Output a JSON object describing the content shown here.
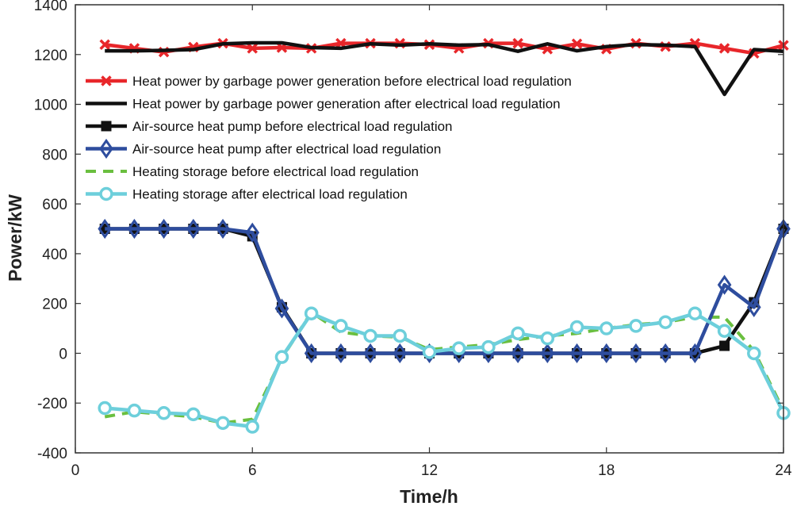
{
  "chart_data": {
    "type": "line",
    "title": "",
    "xlabel": "Time/h",
    "ylabel": "Power/kW",
    "xlim": [
      0,
      24
    ],
    "ylim": [
      -400,
      1400
    ],
    "xticks": [
      0,
      6,
      12,
      18,
      24
    ],
    "yticks": [
      -400,
      -200,
      0,
      200,
      400,
      600,
      800,
      1000,
      1200,
      1400
    ],
    "grid": false,
    "legend_position": "top-left",
    "x": [
      1,
      2,
      3,
      4,
      5,
      6,
      7,
      8,
      9,
      10,
      11,
      12,
      13,
      14,
      15,
      16,
      17,
      18,
      19,
      20,
      21,
      22,
      23,
      24
    ],
    "series": [
      {
        "name": "Heat power by garbage power generation before electrical load regulation",
        "color": "#e8262a",
        "marker": "x",
        "dash": "solid",
        "width": 4.5,
        "values": [
          1240,
          1225,
          1210,
          1230,
          1245,
          1225,
          1228,
          1225,
          1245,
          1245,
          1245,
          1240,
          1225,
          1245,
          1245,
          1222,
          1243,
          1222,
          1245,
          1232,
          1245,
          1225,
          1205,
          1237
        ]
      },
      {
        "name": "Heat power by garbage power generation after electrical load regulation",
        "color": "#111111",
        "marker": "none",
        "dash": "solid",
        "width": 4.5,
        "values": [
          1215,
          1215,
          1217,
          1220,
          1243,
          1247,
          1247,
          1228,
          1225,
          1243,
          1238,
          1243,
          1238,
          1240,
          1213,
          1243,
          1215,
          1232,
          1240,
          1238,
          1232,
          1040,
          1220,
          1213
        ]
      },
      {
        "name": "Air-source heat pump before electrical load regulation",
        "color": "#111111",
        "marker": "square",
        "dash": "solid",
        "width": 4.5,
        "values": [
          500,
          500,
          500,
          500,
          500,
          470,
          185,
          0,
          0,
          0,
          0,
          0,
          0,
          0,
          0,
          0,
          0,
          0,
          0,
          0,
          0,
          30,
          205,
          500
        ]
      },
      {
        "name": "Air-source heat pump after electrical load regulation",
        "color": "#2e4d9e",
        "marker": "diamond",
        "dash": "solid",
        "width": 4.5,
        "values": [
          500,
          500,
          500,
          500,
          500,
          485,
          180,
          0,
          0,
          0,
          0,
          0,
          0,
          0,
          0,
          0,
          0,
          0,
          0,
          0,
          0,
          275,
          185,
          500
        ]
      },
      {
        "name": "Heating storage before electrical load regulation",
        "color": "#6abf3f",
        "marker": "none",
        "dash": "dashed",
        "width": 4,
        "values": [
          -255,
          -235,
          -245,
          -255,
          -280,
          -265,
          -20,
          165,
          85,
          70,
          65,
          15,
          25,
          35,
          55,
          70,
          80,
          100,
          115,
          125,
          145,
          145,
          10,
          -230
        ]
      },
      {
        "name": "Heating storage after electrical load regulation",
        "color": "#6dcfdb",
        "marker": "circle",
        "dash": "solid",
        "width": 4.5,
        "values": [
          -220,
          -230,
          -240,
          -245,
          -280,
          -295,
          -15,
          160,
          110,
          70,
          70,
          5,
          20,
          25,
          80,
          60,
          105,
          100,
          110,
          125,
          160,
          90,
          0,
          -240
        ]
      }
    ]
  }
}
